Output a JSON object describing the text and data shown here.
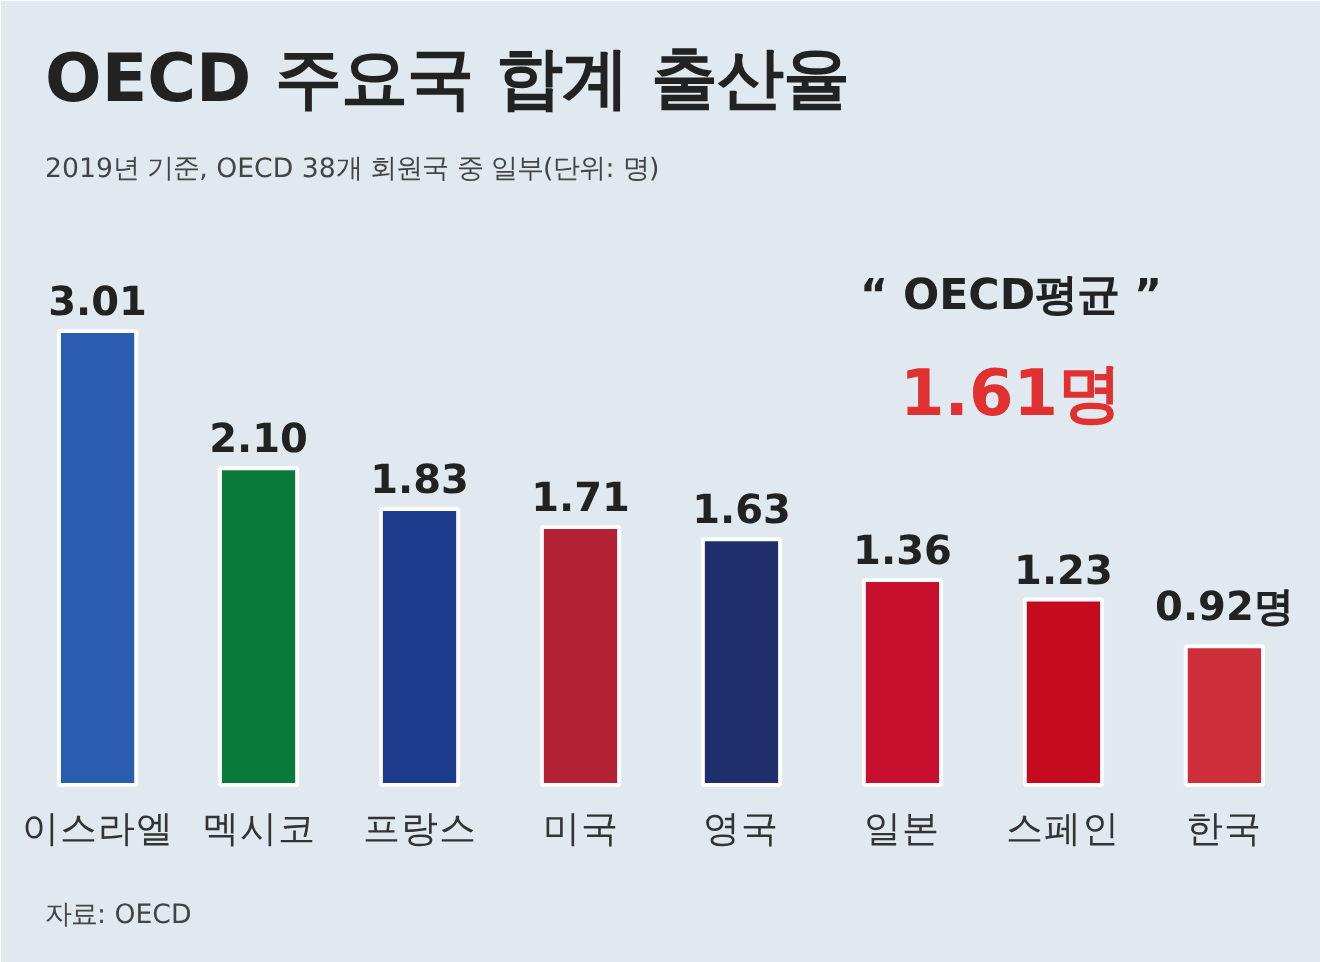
{
  "chart_data": {
    "type": "bar",
    "title": "OECD 주요국 합계 출산율",
    "subtitle": "2019년 기준, OECD 38개 회원국 중 일부(단위: 명)",
    "categories": [
      "이스라엘",
      "멕시코",
      "프랑스",
      "미국",
      "영국",
      "일본",
      "스페인",
      "한국"
    ],
    "values": [
      3.01,
      2.1,
      1.83,
      1.71,
      1.63,
      1.36,
      1.23,
      0.92
    ],
    "value_labels": [
      "3.01",
      "2.10",
      "1.83",
      "1.71",
      "1.63",
      "1.36",
      "1.23",
      "0.92명"
    ],
    "colors": [
      "#2a5db0",
      "#0a7a3b",
      "#1d3b8c",
      "#b22234",
      "#1f2f6b",
      "#c8102e",
      "#c60b1e",
      "#cd2e3a"
    ],
    "annotations": [
      "“ OECD평균 ”",
      "1.61명",
      "자료: OECD"
    ]
  }
}
